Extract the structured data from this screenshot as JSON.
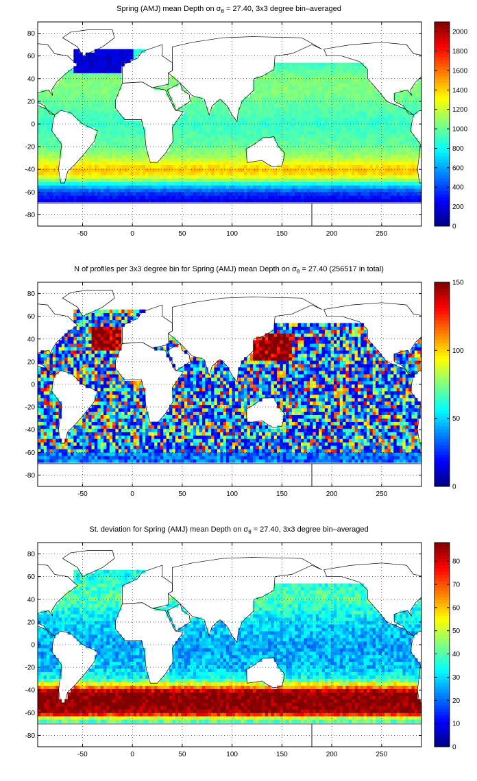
{
  "figure": {
    "panels": [
      {
        "title_pre": "Spring (AMJ) mean Depth on σ",
        "title_sub": "θ",
        "title_post": " = 27.40, 3x3 degree bin–averaged"
      },
      {
        "title_pre": "N of profiles per 3x3 degree bin for Spring (AMJ) mean Depth on σ",
        "title_sub": "θ",
        "title_post": " = 27.40 (256517 in total)"
      },
      {
        "title_pre": "St. deviation for Spring (AMJ) mean Depth on σ",
        "title_sub": "θ",
        "title_post": " = 27.40, 3x3 degree bin–averaged"
      }
    ]
  },
  "chart_data": [
    {
      "type": "heatmap",
      "title": "Spring (AMJ) mean Depth on σθ = 27.40, 3x3 degree bin–averaged",
      "xlim": [
        -95,
        290
      ],
      "ylim": [
        -90,
        90
      ],
      "xticks": [
        -50,
        0,
        50,
        100,
        150,
        200,
        250
      ],
      "yticks": [
        -80,
        -60,
        -40,
        -20,
        0,
        20,
        40,
        60,
        80
      ],
      "colorbar": {
        "min": 0,
        "max": 2100,
        "ticks": [
          0,
          200,
          400,
          600,
          800,
          1000,
          1200,
          1400,
          1600,
          1800,
          2000
        ]
      },
      "colormap": "jet",
      "grid": true,
      "zonal_profile": {
        "lat": [
          -72,
          -66,
          -60,
          -54,
          -48,
          -42,
          -36,
          -30,
          -20,
          -10,
          0,
          10,
          20,
          30,
          40,
          50,
          60
        ],
        "values": [
          150,
          250,
          400,
          700,
          1200,
          1450,
          1350,
          1150,
          1000,
          950,
          900,
          950,
          1000,
          1050,
          1050,
          950,
          850
        ]
      }
    },
    {
      "type": "heatmap",
      "title": "N of profiles per 3x3 degree bin for Spring (AMJ) mean Depth on σθ = 27.40 (256517 in total)",
      "xlim": [
        -95,
        290
      ],
      "ylim": [
        -90,
        90
      ],
      "xticks": [
        -50,
        0,
        50,
        100,
        150,
        200,
        250
      ],
      "yticks": [
        -80,
        -60,
        -40,
        -20,
        0,
        20,
        40,
        60,
        80
      ],
      "colorbar": {
        "min": 0,
        "max": 150,
        "ticks": [
          0,
          50,
          100,
          150
        ]
      },
      "colormap": "jet",
      "grid": true,
      "total_profiles": 256517
    },
    {
      "type": "heatmap",
      "title": "St. deviation for Spring (AMJ) mean Depth on σθ = 27.40, 3x3 degree bin–averaged",
      "xlim": [
        -95,
        290
      ],
      "ylim": [
        -90,
        90
      ],
      "xticks": [
        -50,
        0,
        50,
        100,
        150,
        200,
        250
      ],
      "yticks": [
        -80,
        -60,
        -40,
        -20,
        0,
        20,
        40,
        60,
        80
      ],
      "colorbar": {
        "min": 0,
        "max": 88,
        "ticks": [
          0,
          10,
          20,
          30,
          40,
          50,
          60,
          70,
          80
        ]
      },
      "colormap": "jet",
      "grid": true,
      "zonal_profile": {
        "lat": [
          -66,
          -60,
          -54,
          -48,
          -42,
          -36,
          -30,
          -20,
          0,
          20,
          40,
          60
        ],
        "values": [
          40,
          85,
          88,
          88,
          88,
          60,
          35,
          28,
          25,
          30,
          40,
          35
        ]
      }
    }
  ]
}
